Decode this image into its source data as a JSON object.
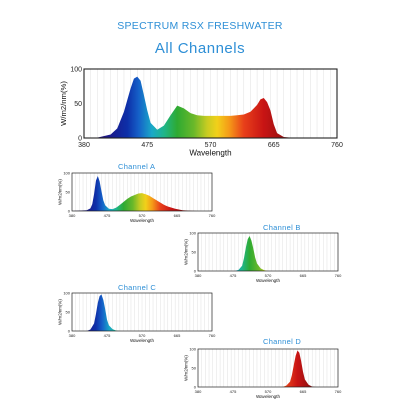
{
  "header": {
    "title": "SPECTRUM RSX FRESHWATER",
    "subtitle": "All Channels"
  },
  "chart_data": [
    {
      "type": "area",
      "title": "All Channels",
      "xlabel": "Wavelength",
      "ylabel": "W/m2/nm(%)",
      "xlim": [
        380,
        760
      ],
      "ylim": [
        0,
        100
      ],
      "x_ticks": [
        "380",
        "475",
        "570",
        "665",
        "760"
      ],
      "y_ticks": [
        "0",
        "50",
        "100"
      ],
      "grid": true,
      "x": [
        380,
        400,
        420,
        430,
        440,
        450,
        455,
        460,
        465,
        470,
        475,
        480,
        490,
        500,
        510,
        520,
        530,
        540,
        550,
        560,
        570,
        580,
        590,
        600,
        610,
        620,
        630,
        640,
        645,
        650,
        655,
        660,
        665,
        670,
        680,
        690,
        700,
        720,
        740,
        760
      ],
      "series": [
        {
          "values": [
            0,
            0.5,
            5,
            14,
            38,
            72,
            86,
            89,
            83,
            62,
            40,
            22,
            12,
            18,
            33,
            47,
            43,
            36,
            33,
            32,
            32,
            32,
            32,
            32,
            33,
            34,
            38,
            48,
            56,
            58,
            52,
            40,
            20,
            7,
            1.5,
            0.5,
            0,
            0,
            0,
            0
          ]
        }
      ]
    },
    {
      "type": "area",
      "title": "Channel  A",
      "xlabel": "Wavelength",
      "ylabel": "W/m2/nm(%)",
      "xlim": [
        380,
        760
      ],
      "ylim": [
        0,
        100
      ],
      "x_ticks": [
        "380",
        "475",
        "570",
        "665",
        "760"
      ],
      "y_ticks": [
        "0",
        "50",
        "100"
      ],
      "grid": true,
      "x": [
        380,
        420,
        430,
        435,
        440,
        445,
        450,
        455,
        460,
        465,
        470,
        480,
        490,
        500,
        510,
        520,
        530,
        540,
        550,
        560,
        570,
        580,
        590,
        600,
        610,
        620,
        630,
        640,
        660,
        680,
        700,
        720,
        740,
        760
      ],
      "series": [
        {
          "values": [
            0,
            2,
            7,
            18,
            45,
            80,
            92,
            78,
            52,
            28,
            15,
            6,
            5,
            9,
            16,
            24,
            32,
            38,
            42,
            46,
            47,
            44,
            40,
            34,
            28,
            22,
            16,
            12,
            6,
            2,
            0.5,
            0,
            0,
            0
          ]
        }
      ]
    },
    {
      "type": "area",
      "title": "Channel  B",
      "xlabel": "Wavelength",
      "ylabel": "W/m2/nm(%)",
      "xlim": [
        380,
        760
      ],
      "ylim": [
        0,
        100
      ],
      "x_ticks": [
        "380",
        "475",
        "570",
        "665",
        "760"
      ],
      "y_ticks": [
        "0",
        "50",
        "100"
      ],
      "grid": true,
      "x": [
        380,
        480,
        490,
        500,
        505,
        510,
        515,
        520,
        525,
        530,
        535,
        540,
        550,
        560,
        570,
        580,
        760
      ],
      "series": [
        {
          "values": [
            0,
            0,
            3,
            14,
            35,
            62,
            84,
            92,
            80,
            60,
            36,
            20,
            7,
            2,
            0,
            0,
            0
          ]
        }
      ]
    },
    {
      "type": "area",
      "title": "Channel  C",
      "xlabel": "Wavelength",
      "ylabel": "W/m2/nm(%)",
      "xlim": [
        380,
        760
      ],
      "ylim": [
        0,
        100
      ],
      "x_ticks": [
        "380",
        "475",
        "570",
        "665",
        "760"
      ],
      "y_ticks": [
        "0",
        "50",
        "100"
      ],
      "grid": true,
      "x": [
        380,
        420,
        430,
        440,
        445,
        450,
        455,
        460,
        465,
        470,
        475,
        480,
        490,
        500,
        510,
        760
      ],
      "series": [
        {
          "values": [
            0,
            0,
            4,
            20,
            45,
            74,
            92,
            96,
            82,
            58,
            30,
            15,
            5,
            1,
            0,
            0
          ]
        }
      ]
    },
    {
      "type": "area",
      "title": "Channel  D",
      "xlabel": "Wavelength",
      "ylabel": "W/m2/nm(%)",
      "xlim": [
        380,
        760
      ],
      "ylim": [
        0,
        100
      ],
      "x_ticks": [
        "380",
        "475",
        "570",
        "665",
        "760"
      ],
      "y_ticks": [
        "0",
        "50",
        "100"
      ],
      "grid": true,
      "x": [
        380,
        610,
        620,
        630,
        635,
        640,
        645,
        650,
        655,
        660,
        665,
        670,
        680,
        690,
        700,
        760
      ],
      "series": [
        {
          "values": [
            0,
            0,
            4,
            14,
            32,
            58,
            82,
            96,
            90,
            68,
            40,
            20,
            6,
            1,
            0,
            0
          ]
        }
      ]
    }
  ]
}
